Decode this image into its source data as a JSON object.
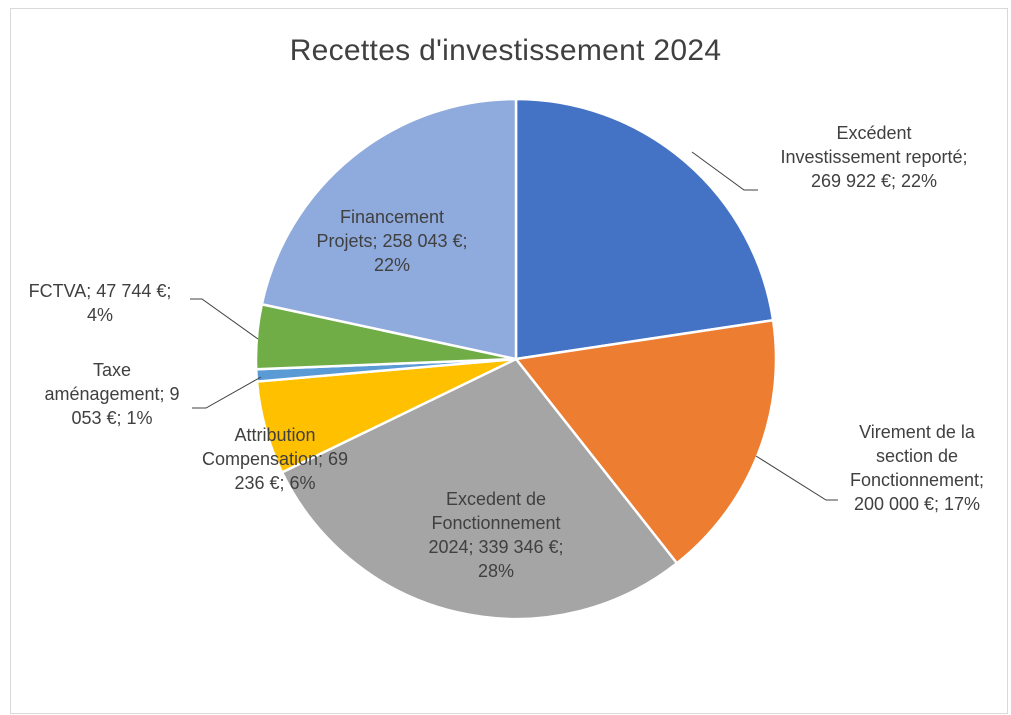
{
  "chart_data": {
    "type": "pie",
    "title": "Recettes d'investissement 2024",
    "slices": [
      {
        "name": "Excédent Investissement reporté",
        "value": 269922,
        "percent": 22,
        "color": "#4472c4",
        "label_lines": [
          "Excédent",
          "Investissement reporté;",
          "269 922 €; 22%"
        ]
      },
      {
        "name": "Virement de la section de Fonctionnement",
        "value": 200000,
        "percent": 17,
        "color": "#ed7d31",
        "label_lines": [
          "Virement de la",
          "section de",
          "Fonctionnement;",
          "200 000 €; 17%"
        ]
      },
      {
        "name": "Excedent de Fonctionnement 2024",
        "value": 339346,
        "percent": 28,
        "color": "#a5a5a5",
        "label_lines": [
          "Excedent de",
          "Fonctionnement",
          "2024; 339 346 €;",
          "28%"
        ]
      },
      {
        "name": "Attribution Compensation",
        "value": 69236,
        "percent": 6,
        "color": "#ffc000",
        "label_lines": [
          "Attribution",
          "Compensation; 69",
          "236 €; 6%"
        ]
      },
      {
        "name": "Taxe aménagement",
        "value": 9053,
        "percent": 1,
        "color": "#5b9bd5",
        "label_lines": [
          "Taxe",
          "aménagement; 9",
          "053 €; 1%"
        ]
      },
      {
        "name": "FCTVA",
        "value": 47744,
        "percent": 4,
        "color": "#70ad47",
        "label_lines": [
          "FCTVA; 47 744 €;",
          "4%"
        ]
      },
      {
        "name": "Financement Projets",
        "value": 258043,
        "percent": 22,
        "color": "#8faadc",
        "label_lines": [
          "Financement",
          "Projets; 258 043 €;",
          "22%"
        ]
      }
    ]
  }
}
